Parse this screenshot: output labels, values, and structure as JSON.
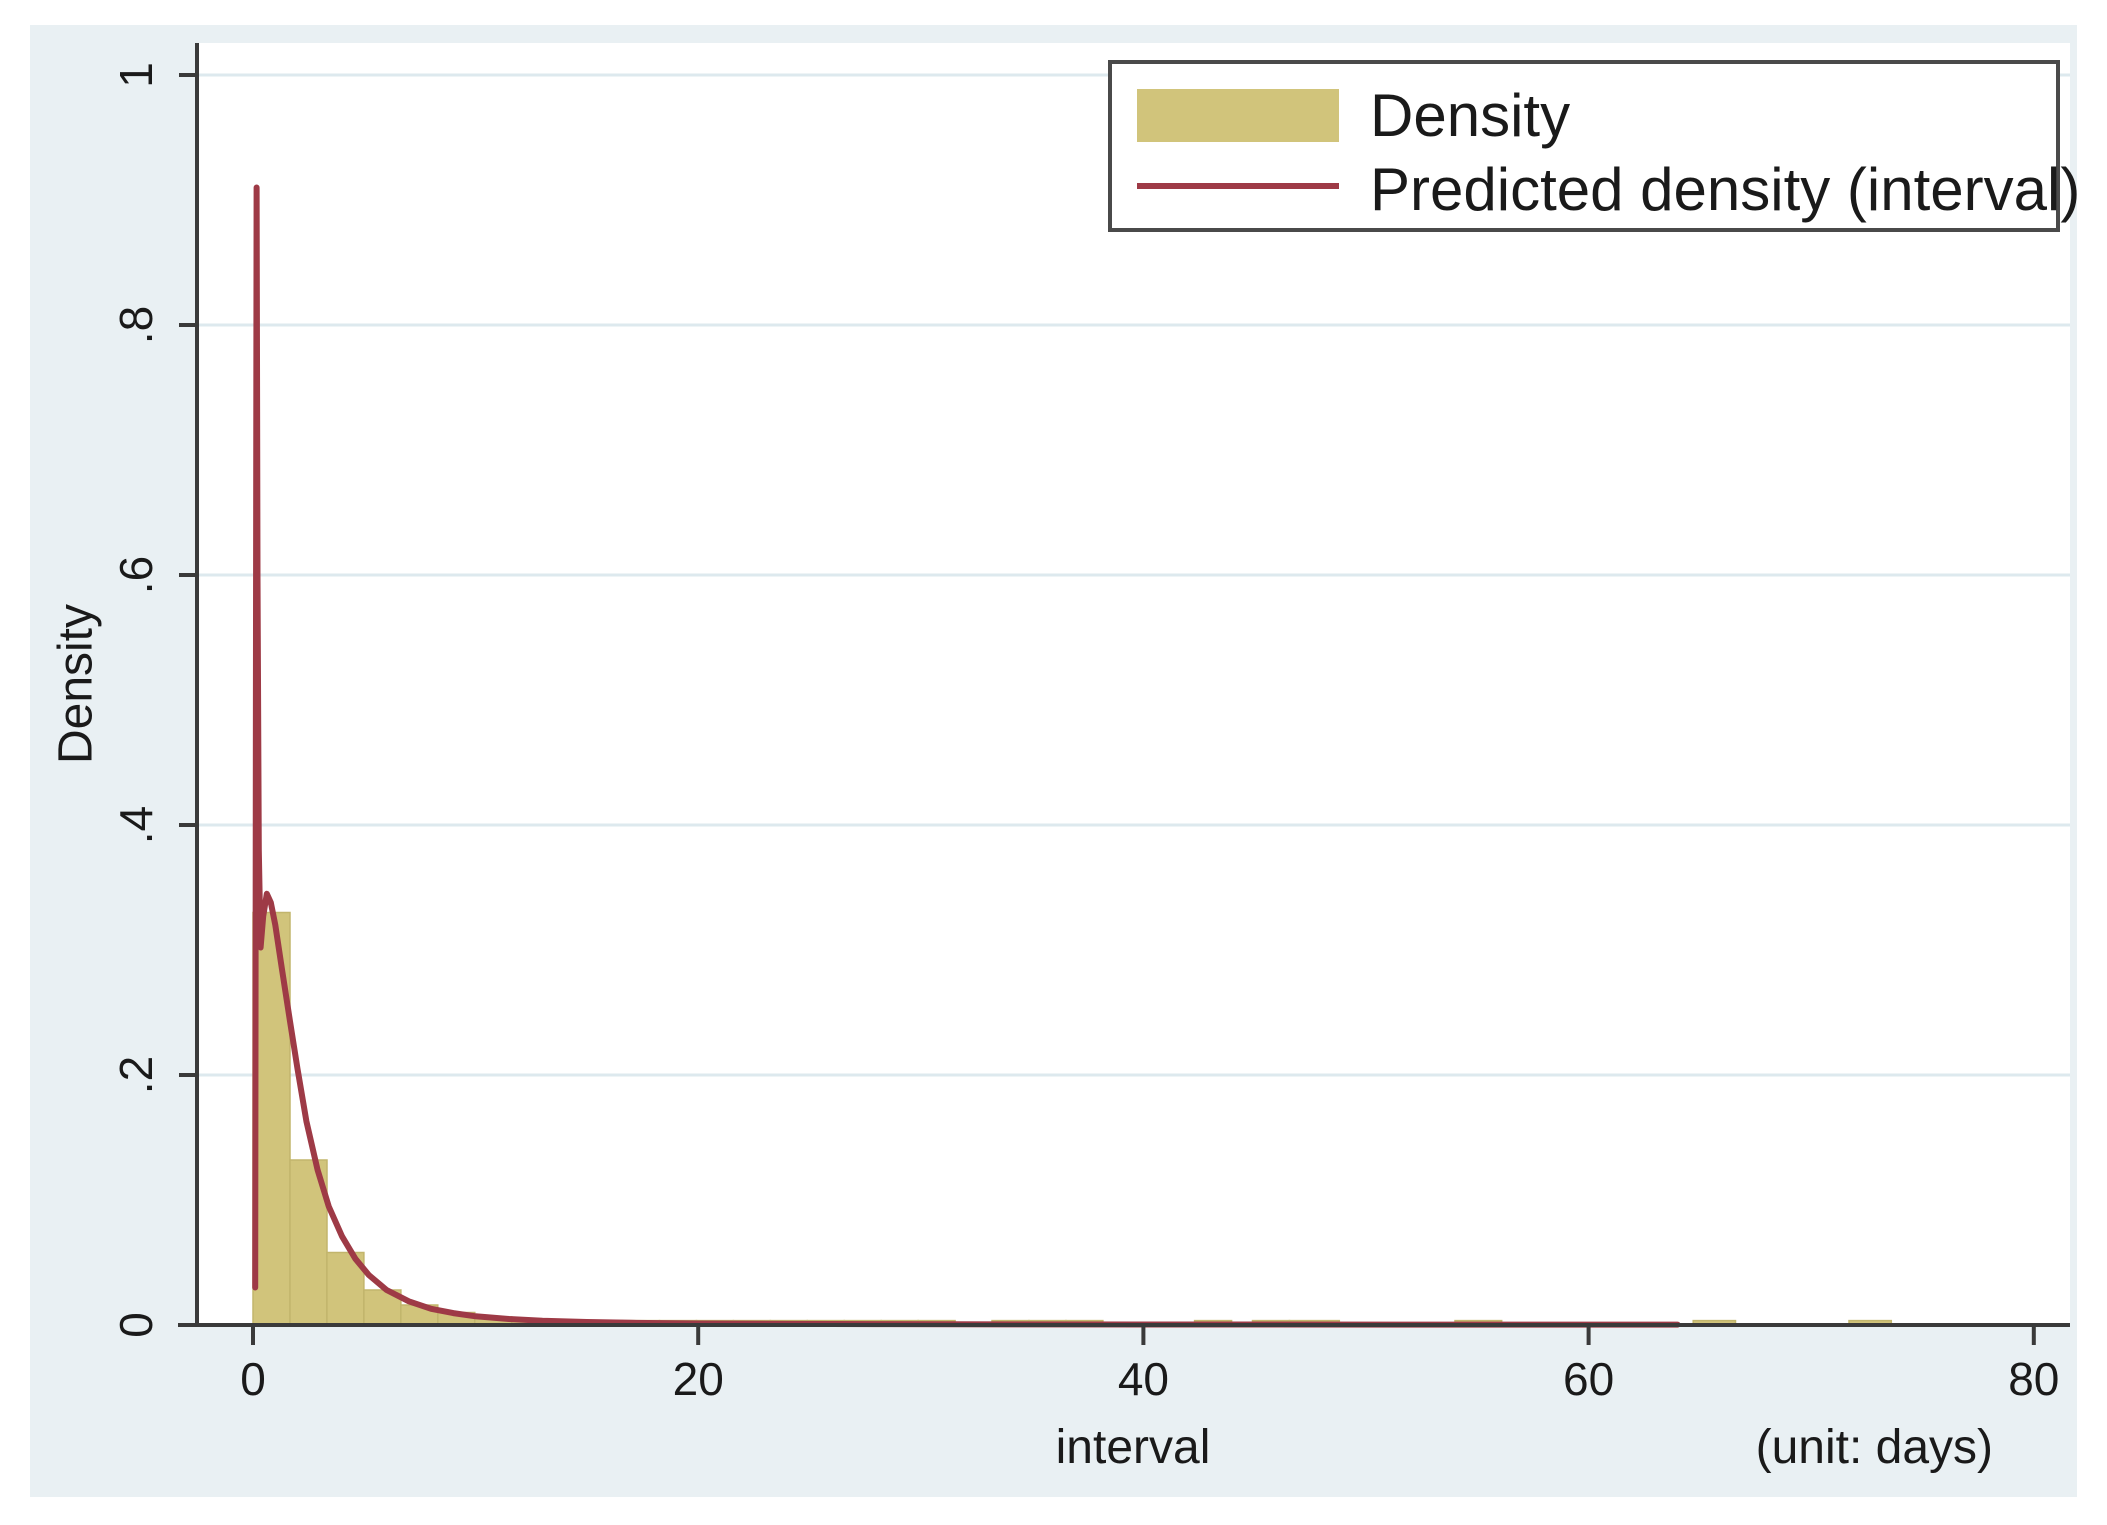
{
  "figure": {
    "outer_background": "#ffffff",
    "background": "#e9f0f3",
    "plot_background": "#ffffff",
    "gridline_color": "#dde9ee",
    "axis_color": "#3a3a3a",
    "text_color": "#1a1a1a"
  },
  "chart_data": {
    "type": "bar",
    "subtype": "histogram_with_density_line",
    "title": "",
    "xlabel": "interval",
    "xlabel_note": "(unit: days)",
    "ylabel": "Density",
    "xlim": [
      -2.5,
      81.6
    ],
    "ylim": [
      0,
      1.026
    ],
    "x_ticks": [
      0,
      20,
      40,
      60,
      80
    ],
    "x_tick_labels": [
      "0",
      "20",
      "40",
      "60",
      "80"
    ],
    "y_ticks": [
      0,
      0.2,
      0.4,
      0.6,
      0.8,
      1
    ],
    "y_tick_labels": [
      "0",
      ".2",
      ".4",
      ".6",
      ".8",
      "1"
    ],
    "grid": "horizontal",
    "legend": {
      "position": "top-right",
      "entries": [
        {
          "label": "Density",
          "type": "fill",
          "color": "#d1c47b"
        },
        {
          "label": "Predicted density (interval)",
          "type": "line",
          "color": "#9e3a46"
        }
      ]
    },
    "histogram": {
      "name": "Density",
      "fill_color": "#d1c47b",
      "edge_color": "#c2b56c",
      "bin_width": 1.66,
      "bars": [
        {
          "x0": 0.0,
          "x1": 1.66,
          "h": 0.33
        },
        {
          "x0": 1.66,
          "x1": 3.32,
          "h": 0.132
        },
        {
          "x0": 3.32,
          "x1": 4.98,
          "h": 0.058
        },
        {
          "x0": 4.98,
          "x1": 6.64,
          "h": 0.028
        },
        {
          "x0": 6.64,
          "x1": 8.3,
          "h": 0.016
        },
        {
          "x0": 8.3,
          "x1": 9.96,
          "h": 0.01
        },
        {
          "x0": 9.96,
          "x1": 11.62,
          "h": 0.0065
        },
        {
          "x0": 11.62,
          "x1": 13.28,
          "h": 0.005
        },
        {
          "x0": 13.28,
          "x1": 14.94,
          "h": 0.0035
        },
        {
          "x0": 14.94,
          "x1": 16.6,
          "h": 0.0035
        },
        {
          "x0": 16.6,
          "x1": 18.26,
          "h": 0.0035
        },
        {
          "x0": 18.26,
          "x1": 19.92,
          "h": 0.0035
        },
        {
          "x0": 19.92,
          "x1": 21.58,
          "h": 0.0035
        },
        {
          "x0": 21.58,
          "x1": 23.24,
          "h": 0.0035
        },
        {
          "x0": 23.24,
          "x1": 24.9,
          "h": 0.0035
        },
        {
          "x0": 24.9,
          "x1": 26.56,
          "h": 0.0035
        },
        {
          "x0": 26.56,
          "x1": 28.22,
          "h": 0.0035
        },
        {
          "x0": 28.22,
          "x1": 29.88,
          "h": 0.0035
        },
        {
          "x0": 29.88,
          "x1": 31.54,
          "h": 0.0035
        },
        {
          "x0": 33.2,
          "x1": 34.86,
          "h": 0.0035
        },
        {
          "x0": 34.86,
          "x1": 36.52,
          "h": 0.0035
        },
        {
          "x0": 36.52,
          "x1": 38.18,
          "h": 0.0035
        },
        {
          "x0": 42.3,
          "x1": 43.96,
          "h": 0.0035
        },
        {
          "x0": 44.9,
          "x1": 46.56,
          "h": 0.0035
        },
        {
          "x0": 46.56,
          "x1": 48.8,
          "h": 0.0035
        },
        {
          "x0": 54.0,
          "x1": 56.1,
          "h": 0.0035
        },
        {
          "x0": 64.7,
          "x1": 66.6,
          "h": 0.0035
        },
        {
          "x0": 71.7,
          "x1": 73.6,
          "h": 0.0035
        }
      ]
    },
    "line_series": {
      "name": "Predicted density (interval)",
      "color": "#9e3a46",
      "stroke_width": 6,
      "points": [
        [
          0.1,
          0.03
        ],
        [
          0.13,
          0.5
        ],
        [
          0.16,
          0.91
        ],
        [
          0.2,
          0.6
        ],
        [
          0.26,
          0.38
        ],
        [
          0.34,
          0.302
        ],
        [
          0.46,
          0.327
        ],
        [
          0.62,
          0.345
        ],
        [
          0.8,
          0.338
        ],
        [
          1.0,
          0.32
        ],
        [
          1.3,
          0.285
        ],
        [
          1.66,
          0.243
        ],
        [
          2.0,
          0.205
        ],
        [
          2.4,
          0.163
        ],
        [
          2.9,
          0.124
        ],
        [
          3.4,
          0.095
        ],
        [
          4.0,
          0.071
        ],
        [
          4.6,
          0.053
        ],
        [
          5.2,
          0.04
        ],
        [
          6.0,
          0.028
        ],
        [
          7.0,
          0.019
        ],
        [
          8.0,
          0.013
        ],
        [
          9.0,
          0.0095
        ],
        [
          10.0,
          0.007
        ],
        [
          11.5,
          0.0048
        ],
        [
          13.0,
          0.0034
        ],
        [
          15.0,
          0.0024
        ],
        [
          17.0,
          0.0018
        ],
        [
          20.0,
          0.0012
        ],
        [
          24.0,
          0.0009
        ],
        [
          28.0,
          0.0007
        ],
        [
          34.0,
          0.0005
        ],
        [
          42.0,
          0.0004
        ],
        [
          52.0,
          0.0003
        ],
        [
          64.0,
          0.0003
        ]
      ]
    }
  }
}
